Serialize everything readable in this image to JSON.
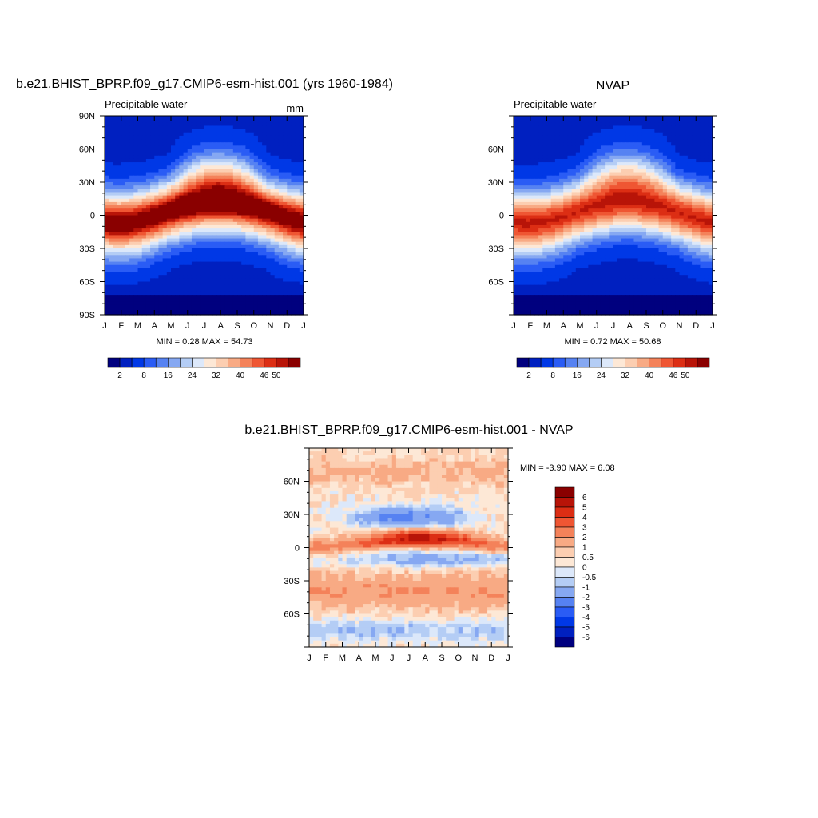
{
  "palette": [
    "#00007f",
    "#0020c0",
    "#0038e6",
    "#2a5cf5",
    "#5682f2",
    "#86a8f2",
    "#b4cdf5",
    "#dce8fa",
    "#fde8d6",
    "#fcceb1",
    "#f8aa84",
    "#f4825a",
    "#ef5633",
    "#dc2e14",
    "#b81408",
    "#8a0000"
  ],
  "palette_note": "",
  "lat_ticks_left": [
    "90N",
    "60N",
    "30N",
    "0",
    "30S",
    "60S",
    "90S"
  ],
  "lat_ticks_no_poles": [
    "60N",
    "30N",
    "0",
    "30S",
    "60S"
  ],
  "month_ticks": [
    "J",
    "F",
    "M",
    "A",
    "M",
    "J",
    "J",
    "A",
    "S",
    "O",
    "N",
    "D",
    "J"
  ],
  "chart_data": [
    {
      "type": "heatmap",
      "id": "model",
      "title": "b.e21.BHIST_BPRP.f09_g17.CMIP6-esm-hist.001 (yrs 1960-1984)",
      "left_label": "Precipitable water",
      "right_label": "mm",
      "x_axis": "month",
      "y_axis": "latitude",
      "ylim": [
        -90,
        90
      ],
      "min_max_text": "MIN =   0.28 MAX =  54.73",
      "min": 0.28,
      "max": 54.73,
      "levels": [
        2,
        4,
        8,
        12,
        16,
        20,
        24,
        28,
        32,
        36,
        40,
        43,
        46,
        48,
        50
      ],
      "colorbar_labels": [
        "2",
        "8",
        "16",
        "24",
        "32",
        "40",
        "46",
        "50"
      ]
    },
    {
      "type": "heatmap",
      "id": "obs",
      "title": "NVAP",
      "left_label": "Precipitable water",
      "x_axis": "month",
      "y_axis": "latitude",
      "min_max_text": "MIN =   0.72 MAX =  50.68",
      "min": 0.72,
      "max": 50.68,
      "levels": [
        2,
        4,
        8,
        12,
        16,
        20,
        24,
        28,
        32,
        36,
        40,
        43,
        46,
        48,
        50
      ],
      "colorbar_labels": [
        "2",
        "8",
        "16",
        "24",
        "32",
        "40",
        "46",
        "50"
      ]
    },
    {
      "type": "heatmap",
      "id": "diff",
      "title": "b.e21.BHIST_BPRP.f09_g17.CMIP6-esm-hist.001 - NVAP",
      "x_axis": "month",
      "y_axis": "latitude",
      "min_max_text": "MIN =  -3.90 MAX =   6.08",
      "min": -3.9,
      "max": 6.08,
      "levels": [
        -6,
        -5,
        -4,
        -3,
        -2,
        -1,
        -0.5,
        0,
        0.5,
        1,
        2,
        3,
        4,
        5,
        6
      ],
      "colorbar_labels": [
        "6",
        "5",
        "4",
        "3",
        "2",
        "1",
        "0.5",
        "0",
        "-0.5",
        "-1",
        "-2",
        "-3",
        "-4",
        "-5",
        "-6"
      ]
    }
  ]
}
